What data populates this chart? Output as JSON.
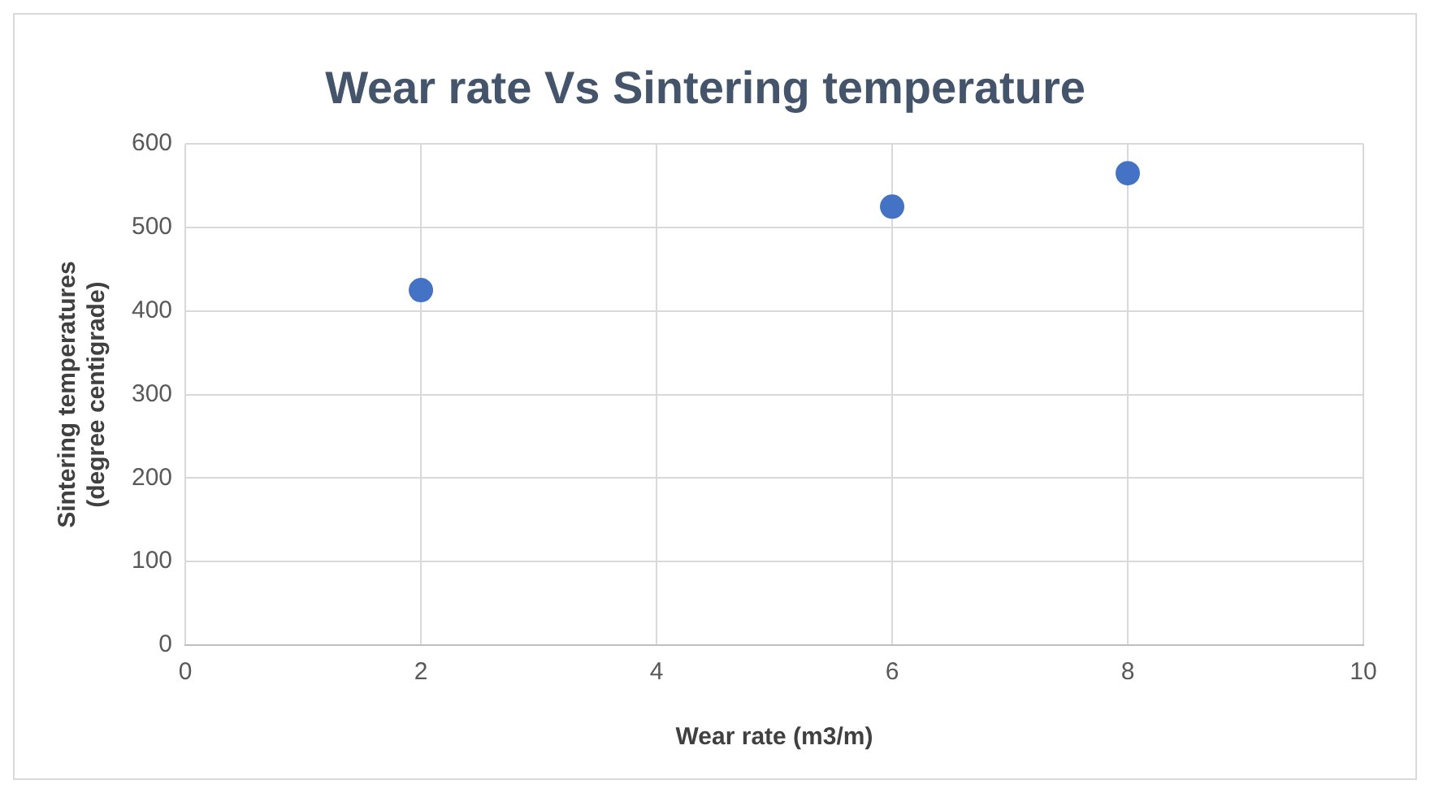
{
  "chart_data": {
    "type": "scatter",
    "title": "Wear rate Vs Sintering temperature",
    "xlabel": "Wear rate (m3/m)",
    "ylabel": "Sintering temperatures (degree centigrade)",
    "x": [
      2,
      6,
      8
    ],
    "series": [
      {
        "color": "#4472c4",
        "values": [
          425,
          525,
          565
        ]
      }
    ],
    "xlim": [
      0,
      10
    ],
    "xticks": [
      0,
      2,
      4,
      6,
      8,
      10
    ],
    "ylim": [
      0,
      600
    ],
    "yticks": [
      0,
      100,
      200,
      300,
      400,
      500,
      600
    ],
    "grid": true,
    "legend": false,
    "marker": "circle"
  }
}
